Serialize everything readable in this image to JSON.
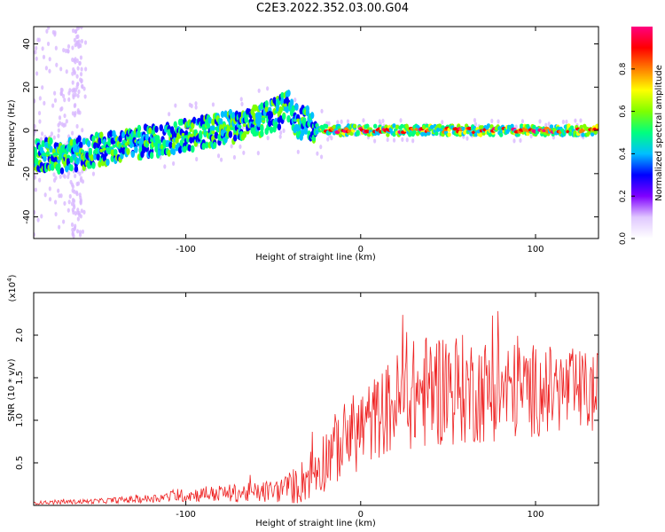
{
  "title": "C2E3.2022.352.03.00.G04",
  "chart_data": [
    {
      "type": "heatmap",
      "xlabel": "Height of straight line (km)",
      "ylabel": "Frequency (Hz)",
      "xlim": [
        -187,
        136
      ],
      "ylim": [
        -50,
        48
      ],
      "x_ticks": [
        -100,
        0,
        100
      ],
      "x_tick_labels": [
        "-100",
        "0",
        "100"
      ],
      "y_ticks": [
        -40,
        -20,
        0,
        20,
        40
      ],
      "y_tick_labels": [
        "-40",
        "-20",
        "0",
        "20",
        "40"
      ],
      "ridge": {
        "x": [
          -187,
          -170,
          -150,
          -130,
          -110,
          -90,
          -70,
          -60,
          -50,
          -45,
          -42,
          -38,
          -35,
          -30,
          -25,
          -20,
          0,
          20,
          40,
          60,
          80,
          100,
          120,
          136
        ],
        "y": [
          -11,
          -12,
          -9,
          -6,
          -4,
          -1,
          2,
          4,
          7,
          9,
          12,
          5,
          4,
          3,
          1,
          0,
          0,
          0,
          0,
          0,
          0,
          0,
          0,
          0
        ]
      },
      "colorbar": {
        "label": "Normalized spectral amplitude",
        "range": [
          0,
          1
        ],
        "ticks": [
          0.0,
          0.2,
          0.4,
          0.6,
          0.8
        ],
        "tick_labels": [
          "0.0",
          "0.2",
          "0.4",
          "0.6",
          "0.8"
        ],
        "colormap": [
          "#ffffff",
          "#e0c8ff",
          "#8000ff",
          "#0000ff",
          "#00bfff",
          "#00ff7f",
          "#7fff00",
          "#ffff00",
          "#ff7f00",
          "#ff0000",
          "#ff0080"
        ]
      }
    },
    {
      "type": "line",
      "xlabel": "Height of straight line (km)",
      "ylabel": "SNR (10 * v/v)",
      "y_multiplier_label": "(x10",
      "y_multiplier_exp": "4",
      "y_multiplier_close": ")",
      "xlim": [
        -187,
        136
      ],
      "ylim": [
        0,
        2.5
      ],
      "x_ticks": [
        -100,
        0,
        100
      ],
      "x_tick_labels": [
        "-100",
        "0",
        "100"
      ],
      "y_ticks": [
        0.5,
        1.0,
        1.5,
        2.0
      ],
      "y_tick_labels": [
        "0.5",
        "1.0",
        "1.5",
        "2.0"
      ],
      "color": "#ee2222",
      "envelope": {
        "x": [
          -187,
          -150,
          -120,
          -100,
          -80,
          -60,
          -45,
          -35,
          -25,
          -18,
          -10,
          0,
          10,
          20,
          30,
          40,
          50,
          60,
          80,
          100,
          120,
          136
        ],
        "mean": [
          0.03,
          0.05,
          0.08,
          0.12,
          0.14,
          0.15,
          0.18,
          0.25,
          0.45,
          0.6,
          0.75,
          0.9,
          1.05,
          1.2,
          1.3,
          1.35,
          1.4,
          1.35,
          1.35,
          1.35,
          1.35,
          1.3
        ],
        "amp": [
          0.02,
          0.03,
          0.05,
          0.08,
          0.1,
          0.12,
          0.15,
          0.25,
          0.35,
          0.4,
          0.45,
          0.5,
          0.5,
          0.6,
          0.65,
          0.7,
          0.7,
          0.65,
          0.6,
          0.55,
          0.5,
          0.5
        ]
      }
    }
  ]
}
